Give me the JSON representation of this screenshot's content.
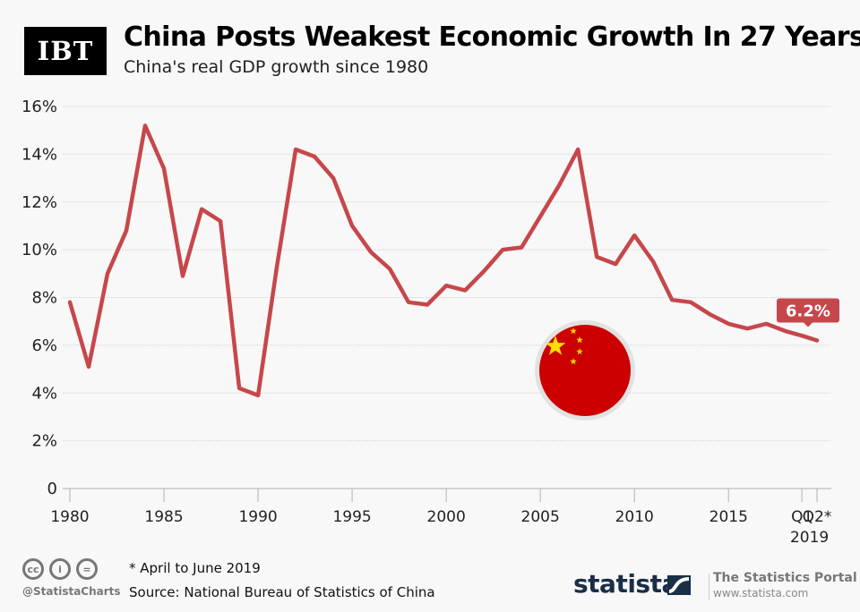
{
  "header": {
    "logo": "IBT",
    "title": "China Posts Weakest Economic Growth In 27 Years",
    "subtitle": "China's real GDP growth since 1980"
  },
  "chart_data": {
    "type": "line",
    "title": "China Posts Weakest Economic Growth In 27 Years",
    "subtitle": "China's real GDP growth since 1980",
    "xlabel": "",
    "ylabel": "",
    "ylim": [
      0,
      16
    ],
    "grid": true,
    "y_ticks": [
      0,
      2,
      4,
      6,
      8,
      10,
      12,
      14,
      16
    ],
    "y_tick_labels": [
      "0",
      "2%",
      "4%",
      "6%",
      "8%",
      "10%",
      "12%",
      "14%",
      "16%"
    ],
    "x_tick_labels": [
      {
        "x": 1980,
        "label": "1980"
      },
      {
        "x": 1985,
        "label": "1985"
      },
      {
        "x": 1990,
        "label": "1990"
      },
      {
        "x": 1995,
        "label": "1995"
      },
      {
        "x": 2000,
        "label": "2000"
      },
      {
        "x": 2005,
        "label": "2005"
      },
      {
        "x": 2010,
        "label": "2010"
      },
      {
        "x": 2015,
        "label": "2015"
      },
      {
        "x": 2018.9,
        "label": "Q1"
      },
      {
        "x": 2019.7,
        "label": "Q2*"
      }
    ],
    "x_sublabel": "2019",
    "series": [
      {
        "name": "Real GDP growth (%)",
        "color": "#c6474b",
        "x": [
          1980,
          1981,
          1982,
          1983,
          1984,
          1985,
          1986,
          1987,
          1988,
          1989,
          1990,
          1991,
          1992,
          1993,
          1994,
          1995,
          1996,
          1997,
          1998,
          1999,
          2000,
          2001,
          2002,
          2003,
          2004,
          2005,
          2006,
          2007,
          2008,
          2009,
          2010,
          2011,
          2012,
          2013,
          2014,
          2015,
          2016,
          2017,
          2018,
          2018.9,
          2019.7
        ],
        "values": [
          7.8,
          5.1,
          9.0,
          10.8,
          15.2,
          13.4,
          8.9,
          11.7,
          11.2,
          4.2,
          3.9,
          9.3,
          14.2,
          13.9,
          13.0,
          11.0,
          9.9,
          9.2,
          7.8,
          7.7,
          8.5,
          8.3,
          9.1,
          10.0,
          10.1,
          11.4,
          12.7,
          14.2,
          9.7,
          9.4,
          10.6,
          9.5,
          7.9,
          7.8,
          7.3,
          6.9,
          6.7,
          6.9,
          6.6,
          6.4,
          6.2
        ]
      }
    ],
    "annotation": {
      "label": "6.2%",
      "x": 2019.7,
      "y": 6.2
    }
  },
  "footer": {
    "license_icons": [
      "cc",
      "by",
      "nd"
    ],
    "handle": "@StatistaCharts",
    "note": "* April to June 2019",
    "source": "Source: National Bureau of Statistics of China",
    "brand": "statista",
    "portal_title": "The Statistics Portal",
    "portal_url": "www.statista.com"
  }
}
